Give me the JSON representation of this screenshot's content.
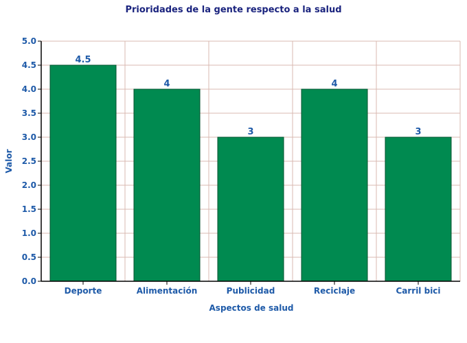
{
  "chart_data": {
    "type": "bar",
    "title": "Prioridades de la gente respecto a la salud",
    "xlabel": "Aspectos de salud",
    "ylabel": "Valor",
    "categories": [
      "Deporte",
      "Alimentación",
      "Publicidad",
      "Reciclaje",
      "Carril bici"
    ],
    "values": [
      4.5,
      4,
      3,
      4,
      3
    ],
    "data_labels": [
      "4.5",
      "4",
      "3",
      "4",
      "3"
    ],
    "ylim": [
      0,
      5
    ],
    "yticks": [
      "0.0",
      "0.5",
      "1.0",
      "1.5",
      "2.0",
      "2.5",
      "3.0",
      "3.5",
      "4.0",
      "4.5",
      "5.0"
    ],
    "grid": true,
    "legend": "none",
    "colors": {
      "bar": "#008a50",
      "bar_edge": "#00512e",
      "grid": "#d9b8b0",
      "text": "#1e5aa8",
      "title": "#1a237e"
    }
  }
}
